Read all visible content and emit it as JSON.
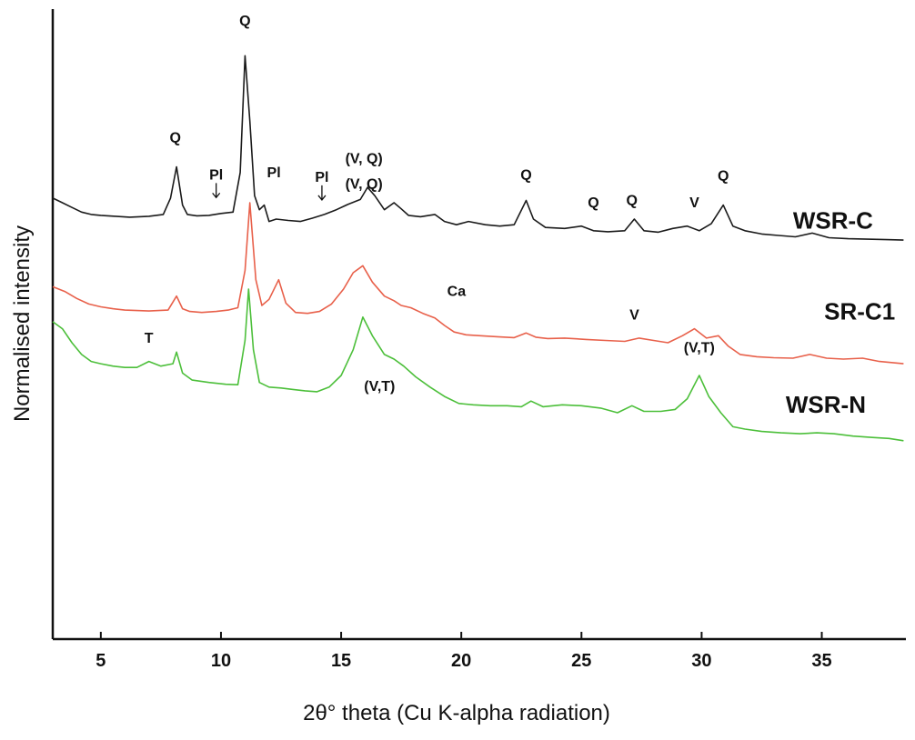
{
  "chart_data": {
    "type": "line",
    "title": "",
    "xlabel": "2θ° theta (Cu K-alpha radiation)",
    "ylabel": "Normalised intensity",
    "xlim": [
      3,
      38.5
    ],
    "x_ticks": [
      5,
      10,
      15,
      20,
      25,
      30,
      35
    ],
    "y_ticks": [],
    "grid": false,
    "series": [
      {
        "name": "WSR-C",
        "color": "#1a1a1a",
        "x": [
          3,
          3.4,
          3.8,
          4.2,
          4.6,
          5,
          5.6,
          6.2,
          7,
          7.6,
          7.9,
          8.15,
          8.4,
          8.6,
          9,
          9.5,
          10,
          10.5,
          10.8,
          11.0,
          11.2,
          11.4,
          11.6,
          11.8,
          12.0,
          12.3,
          12.8,
          13.3,
          13.8,
          14.3,
          14.8,
          15.3,
          15.8,
          16.1,
          16.4,
          16.8,
          17.2,
          17.5,
          17.8,
          18.3,
          18.9,
          19.3,
          19.8,
          20.3,
          21,
          21.6,
          22.2,
          22.7,
          23.0,
          23.5,
          24.3,
          25.0,
          25.5,
          26.1,
          26.8,
          27.2,
          27.6,
          28.2,
          28.8,
          29.4,
          29.9,
          30.4,
          30.9,
          31.3,
          31.8,
          32.5,
          33.2,
          33.9,
          34.6,
          35.3,
          36.1,
          36.9,
          37.7,
          38.4
        ],
        "y": [
          0.395,
          0.385,
          0.375,
          0.365,
          0.36,
          0.358,
          0.356,
          0.354,
          0.356,
          0.36,
          0.395,
          0.462,
          0.38,
          0.36,
          0.357,
          0.358,
          0.362,
          0.365,
          0.45,
          0.7,
          0.56,
          0.4,
          0.37,
          0.38,
          0.345,
          0.35,
          0.347,
          0.345,
          0.352,
          0.36,
          0.37,
          0.382,
          0.392,
          0.418,
          0.4,
          0.37,
          0.385,
          0.372,
          0.358,
          0.355,
          0.36,
          0.345,
          0.338,
          0.345,
          0.338,
          0.335,
          0.338,
          0.39,
          0.35,
          0.332,
          0.33,
          0.335,
          0.325,
          0.323,
          0.325,
          0.35,
          0.325,
          0.322,
          0.33,
          0.335,
          0.325,
          0.34,
          0.38,
          0.335,
          0.325,
          0.318,
          0.315,
          0.312,
          0.32,
          0.31,
          0.308,
          0.307,
          0.306,
          0.305
        ]
      },
      {
        "name": "SR-C1",
        "color": "#e8604a",
        "x": [
          3,
          3.5,
          4,
          4.5,
          5,
          5.5,
          6,
          7,
          7.8,
          8.15,
          8.4,
          8.7,
          9.2,
          9.8,
          10.3,
          10.7,
          11.0,
          11.2,
          11.45,
          11.7,
          12.0,
          12.4,
          12.7,
          13.1,
          13.6,
          14.1,
          14.6,
          15.1,
          15.5,
          15.9,
          16.3,
          16.8,
          17.2,
          17.5,
          17.9,
          18.4,
          18.9,
          19.3,
          19.7,
          20.2,
          20.8,
          21.5,
          22.2,
          22.7,
          23.1,
          23.6,
          24.3,
          25.2,
          26,
          26.8,
          27.4,
          28,
          28.6,
          29.2,
          29.7,
          30.2,
          30.7,
          31.1,
          31.6,
          32.3,
          33,
          33.8,
          34.5,
          35.2,
          35.9,
          36.7,
          37.4,
          38.4
        ],
        "y": [
          0.205,
          0.195,
          0.18,
          0.168,
          0.162,
          0.158,
          0.155,
          0.153,
          0.155,
          0.185,
          0.158,
          0.152,
          0.15,
          0.152,
          0.155,
          0.16,
          0.24,
          0.385,
          0.22,
          0.165,
          0.178,
          0.22,
          0.17,
          0.15,
          0.148,
          0.152,
          0.168,
          0.2,
          0.235,
          0.25,
          0.215,
          0.185,
          0.175,
          0.165,
          0.16,
          0.148,
          0.138,
          0.122,
          0.108,
          0.102,
          0.1,
          0.098,
          0.096,
          0.106,
          0.097,
          0.094,
          0.095,
          0.092,
          0.09,
          0.088,
          0.095,
          0.09,
          0.085,
          0.1,
          0.115,
          0.095,
          0.1,
          0.078,
          0.06,
          0.055,
          0.053,
          0.052,
          0.06,
          0.052,
          0.05,
          0.052,
          0.045,
          0.04
        ]
      },
      {
        "name": "WSR-N",
        "color": "#4cbf3a",
        "x": [
          3,
          3.4,
          3.8,
          4.2,
          4.6,
          5,
          5.5,
          6,
          6.5,
          7.0,
          7.5,
          8.0,
          8.15,
          8.4,
          8.8,
          9.5,
          10.2,
          10.7,
          11.0,
          11.15,
          11.35,
          11.6,
          12.0,
          12.5,
          13.0,
          13.5,
          14.0,
          14.5,
          15.0,
          15.5,
          15.9,
          16.3,
          16.8,
          17.2,
          17.6,
          18.1,
          18.7,
          19.3,
          19.9,
          20.5,
          21.2,
          21.9,
          22.5,
          22.9,
          23.4,
          24.2,
          25.0,
          25.8,
          26.5,
          27.1,
          27.6,
          28.3,
          28.9,
          29.4,
          29.9,
          30.3,
          30.8,
          31.3,
          31.8,
          32.5,
          33.3,
          34.1,
          34.8,
          35.5,
          36.3,
          37.1,
          37.8,
          38.4
        ],
        "y": [
          0.13,
          0.115,
          0.085,
          0.06,
          0.045,
          0.04,
          0.035,
          0.032,
          0.032,
          0.045,
          0.035,
          0.04,
          0.065,
          0.02,
          0.005,
          0.0,
          -0.004,
          -0.005,
          0.09,
          0.2,
          0.07,
          0.0,
          -0.01,
          -0.012,
          -0.015,
          -0.018,
          -0.02,
          -0.01,
          0.015,
          0.07,
          0.14,
          0.1,
          0.06,
          0.05,
          0.035,
          0.012,
          -0.01,
          -0.03,
          -0.045,
          -0.048,
          -0.05,
          -0.05,
          -0.052,
          -0.04,
          -0.052,
          -0.048,
          -0.05,
          -0.055,
          -0.065,
          -0.05,
          -0.062,
          -0.062,
          -0.058,
          -0.035,
          0.015,
          -0.03,
          -0.065,
          -0.095,
          -0.1,
          -0.105,
          -0.108,
          -0.11,
          -0.108,
          -0.11,
          -0.115,
          -0.118,
          -0.12,
          -0.125
        ]
      }
    ],
    "series_labels": [
      {
        "text": "WSR-C",
        "x": 33.8,
        "y": 0.33
      },
      {
        "text": "SR-C1",
        "x": 35.1,
        "y": 0.135
      },
      {
        "text": "WSR-N",
        "x": 33.5,
        "y": -0.065
      }
    ],
    "annotations": [
      {
        "text": "Q",
        "x": 8.1,
        "y": 0.515,
        "arrow": false
      },
      {
        "text": "Q",
        "x": 11.0,
        "y": 0.765,
        "arrow": false
      },
      {
        "text": "Pl",
        "x": 9.8,
        "y": 0.435,
        "arrow": true
      },
      {
        "text": "Pl",
        "x": 12.2,
        "y": 0.44,
        "arrow": false
      },
      {
        "text": "Pl",
        "x": 14.2,
        "y": 0.43,
        "arrow": true
      },
      {
        "text": "(V, Q)",
        "x": 15.95,
        "y": 0.47,
        "arrow": false
      },
      {
        "text": "(V, Q)",
        "x": 15.95,
        "y": 0.415,
        "arrow": false
      },
      {
        "text": "Q",
        "x": 22.7,
        "y": 0.435,
        "arrow": false
      },
      {
        "text": "Q",
        "x": 25.5,
        "y": 0.375,
        "arrow": false
      },
      {
        "text": "Q",
        "x": 27.1,
        "y": 0.38,
        "arrow": false
      },
      {
        "text": "V",
        "x": 29.7,
        "y": 0.375,
        "arrow": false
      },
      {
        "text": "Q",
        "x": 30.9,
        "y": 0.433,
        "arrow": false
      },
      {
        "text": "Ca",
        "x": 19.8,
        "y": 0.185,
        "arrow": false
      },
      {
        "text": "V",
        "x": 27.2,
        "y": 0.135,
        "arrow": false
      },
      {
        "text": "T",
        "x": 7.0,
        "y": 0.085,
        "arrow": false
      },
      {
        "text": "(V,T)",
        "x": 16.6,
        "y": -0.018,
        "arrow": false
      },
      {
        "text": "(V,T)",
        "x": 29.9,
        "y": 0.065,
        "arrow": false
      }
    ]
  }
}
